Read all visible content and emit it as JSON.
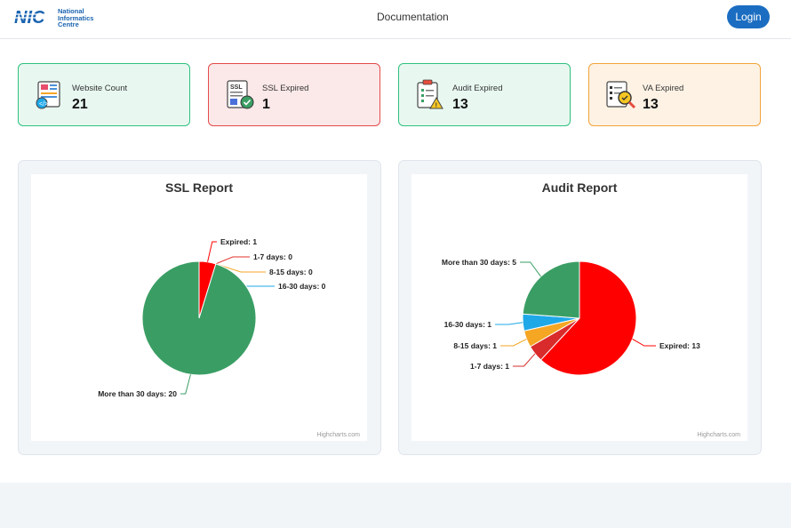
{
  "header": {
    "logo_mark": "NIC",
    "logo_text": [
      "National",
      "Informatics",
      "Centre"
    ],
    "nav_documentation": "Documentation",
    "login_label": "Login"
  },
  "cards": [
    {
      "label": "Website Count",
      "value": "21",
      "icon": "website-icon",
      "bg": "#e8f8f1",
      "border": "#2fc17e"
    },
    {
      "label": "SSL Expired",
      "value": "1",
      "icon": "ssl-certificate-icon",
      "bg": "#fbe8e8",
      "border": "#e44a4a"
    },
    {
      "label": "Audit Expired",
      "value": "13",
      "icon": "audit-clipboard-icon",
      "bg": "#e8f8f1",
      "border": "#2fc17e"
    },
    {
      "label": "VA Expired",
      "value": "13",
      "icon": "va-search-icon",
      "bg": "#fdf2e4",
      "border": "#f2a43a"
    }
  ],
  "chart_data": [
    {
      "type": "pie",
      "title": "SSL Report",
      "credits": "Highcharts.com",
      "slices": [
        {
          "name": "Expired",
          "value": 1,
          "color": "#ff0000"
        },
        {
          "name": "1-7 days",
          "value": 0,
          "color": "#e0302b"
        },
        {
          "name": "8-15 days",
          "value": 0,
          "color": "#f5a623"
        },
        {
          "name": "16-30 days",
          "value": 0,
          "color": "#1ea8e8"
        },
        {
          "name": "More than 30 days",
          "value": 20,
          "color": "#3a9e64"
        }
      ]
    },
    {
      "type": "pie",
      "title": "Audit Report",
      "credits": "Highcharts.com",
      "slices": [
        {
          "name": "Expired",
          "value": 13,
          "color": "#ff0000"
        },
        {
          "name": "1-7 days",
          "value": 1,
          "color": "#d92b2b"
        },
        {
          "name": "8-15 days",
          "value": 1,
          "color": "#f5a623"
        },
        {
          "name": "16-30 days",
          "value": 1,
          "color": "#1ea8e8"
        },
        {
          "name": "More than 30 days",
          "value": 5,
          "color": "#3a9e64"
        }
      ]
    }
  ]
}
